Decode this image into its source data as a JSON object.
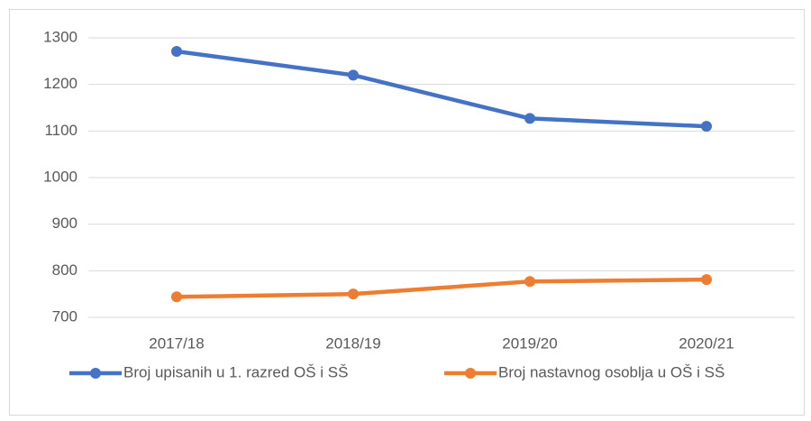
{
  "chart_data": {
    "type": "line",
    "categories": [
      "2017/18",
      "2018/19",
      "2019/20",
      "2020/21"
    ],
    "series": [
      {
        "name": "Broj upisanih u 1. razred OŠ i SŠ",
        "color": "#4472c4",
        "values": [
          1271,
          1220,
          1127,
          1110
        ]
      },
      {
        "name": "Broj nastavnog osoblja u OŠ i SŠ",
        "color": "#ed7d31",
        "values": [
          744,
          750,
          777,
          781
        ]
      }
    ],
    "ylim": [
      700,
      1300
    ],
    "yticks": [
      700,
      800,
      900,
      1000,
      1100,
      1200,
      1300
    ],
    "grid": true,
    "legend": "bottom"
  }
}
